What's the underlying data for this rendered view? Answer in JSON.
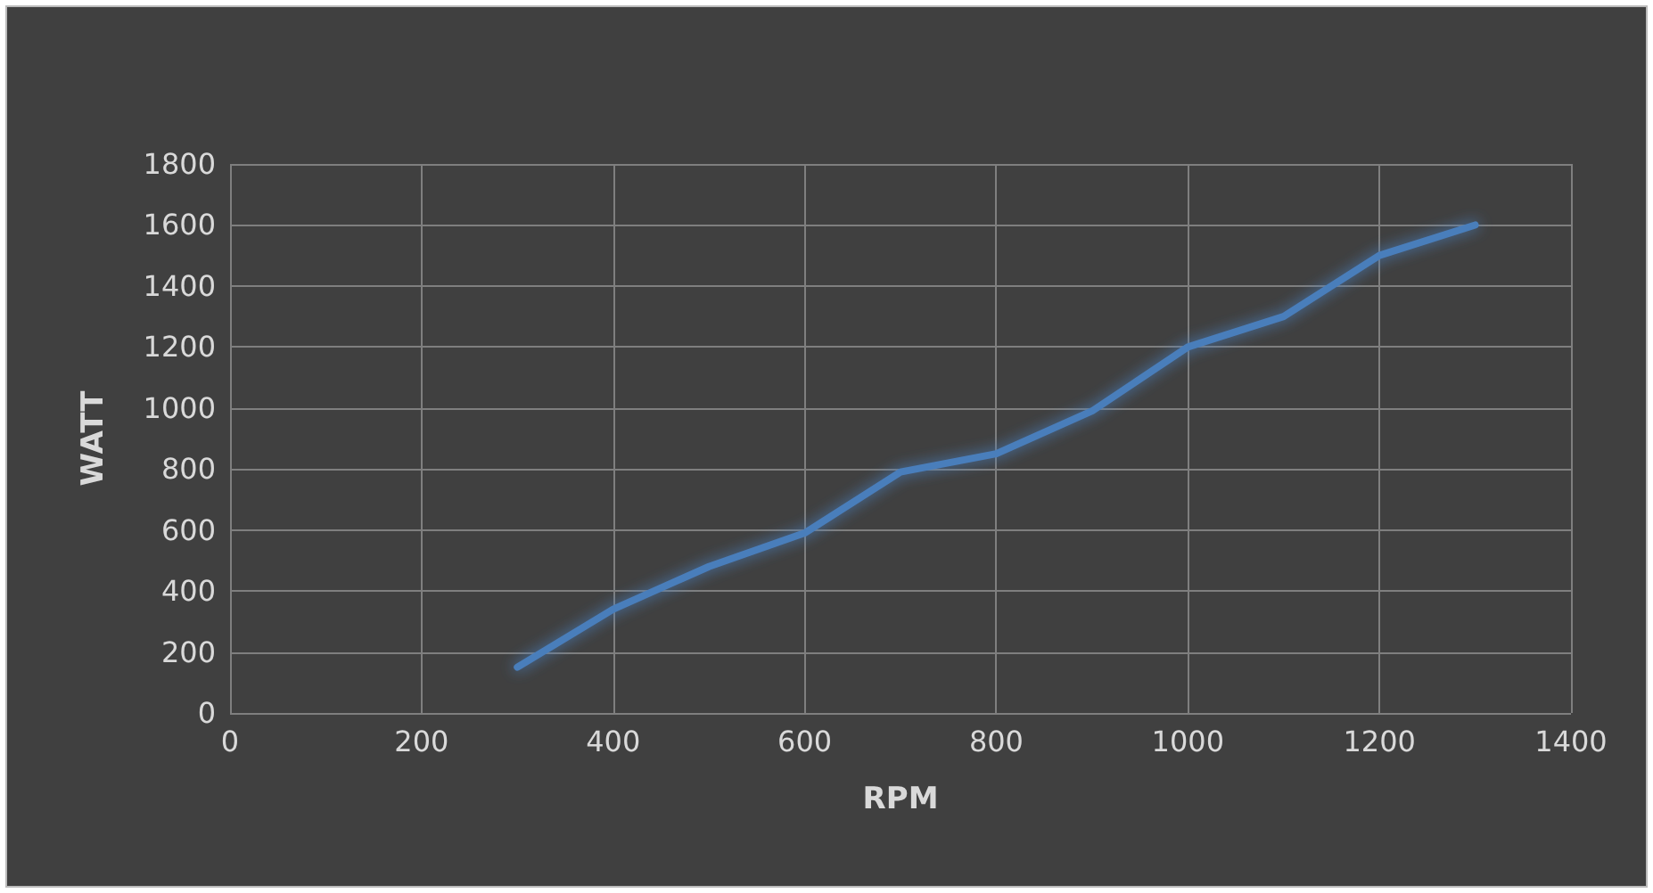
{
  "chart_data": {
    "type": "line",
    "xlabel": "RPM",
    "ylabel": "WATT",
    "x": [
      300,
      400,
      500,
      600,
      700,
      800,
      900,
      1000,
      1100,
      1200,
      1300
    ],
    "series": [
      {
        "color": "#4a7ebb",
        "values": [
          150,
          340,
          480,
          590,
          790,
          850,
          990,
          1200,
          1300,
          1500,
          1600
        ]
      }
    ],
    "xlim": [
      0,
      1400
    ],
    "xticks": [
      0,
      200,
      400,
      600,
      800,
      1000,
      1200,
      1400
    ],
    "ylim": [
      0,
      1800
    ],
    "yticks": [
      0,
      200,
      400,
      600,
      800,
      1000,
      1200,
      1400,
      1600,
      1800
    ],
    "grid": true,
    "marker": "none",
    "line_style": "solid"
  }
}
